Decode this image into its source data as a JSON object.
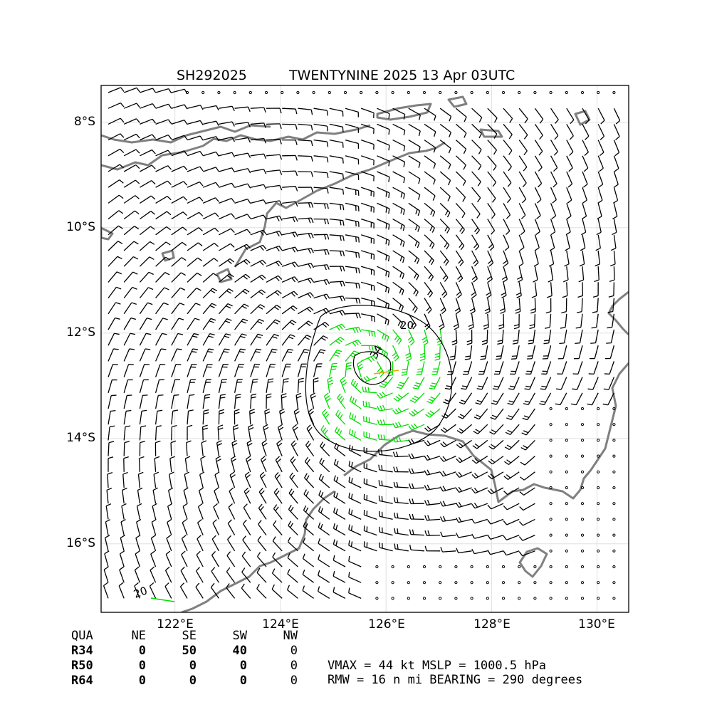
{
  "title": {
    "id": "SH292025",
    "name": "TWENTYNINE 2025 13 Apr 03UTC"
  },
  "map": {
    "lon_range": [
      120.6,
      130.6
    ],
    "lat_range": [
      -17.3,
      -7.3
    ],
    "lon_ticks": [
      "122°E",
      "124°E",
      "126°E",
      "128°E",
      "130°E"
    ],
    "lat_ticks": [
      "8°S",
      "10°S",
      "12°S",
      "14°S",
      "16°S"
    ],
    "storm_center": {
      "lon": 125.7,
      "lat": -12.7
    },
    "contour_labels": [
      "20",
      "34",
      "20"
    ],
    "colors": {
      "coast": "#808080",
      "barb": "#000000",
      "r34": "#00dd00",
      "r50": "#e6a800",
      "grid": "#d9d9d9"
    }
  },
  "wind_radii": {
    "header": [
      "QUA",
      "NE",
      "SE",
      "SW",
      "NW"
    ],
    "rows": [
      {
        "label": "R34",
        "values": [
          "0",
          "50",
          "40",
          "0"
        ]
      },
      {
        "label": "R50",
        "values": [
          "0",
          "0",
          "0",
          "0"
        ]
      },
      {
        "label": "R64",
        "values": [
          "0",
          "0",
          "0",
          "0"
        ]
      }
    ]
  },
  "summary": {
    "line1": "VMAX =  44 kt MSLP = 1000.5 hPa",
    "line2": "RMW =  16 n mi BEARING = 290 degrees"
  }
}
